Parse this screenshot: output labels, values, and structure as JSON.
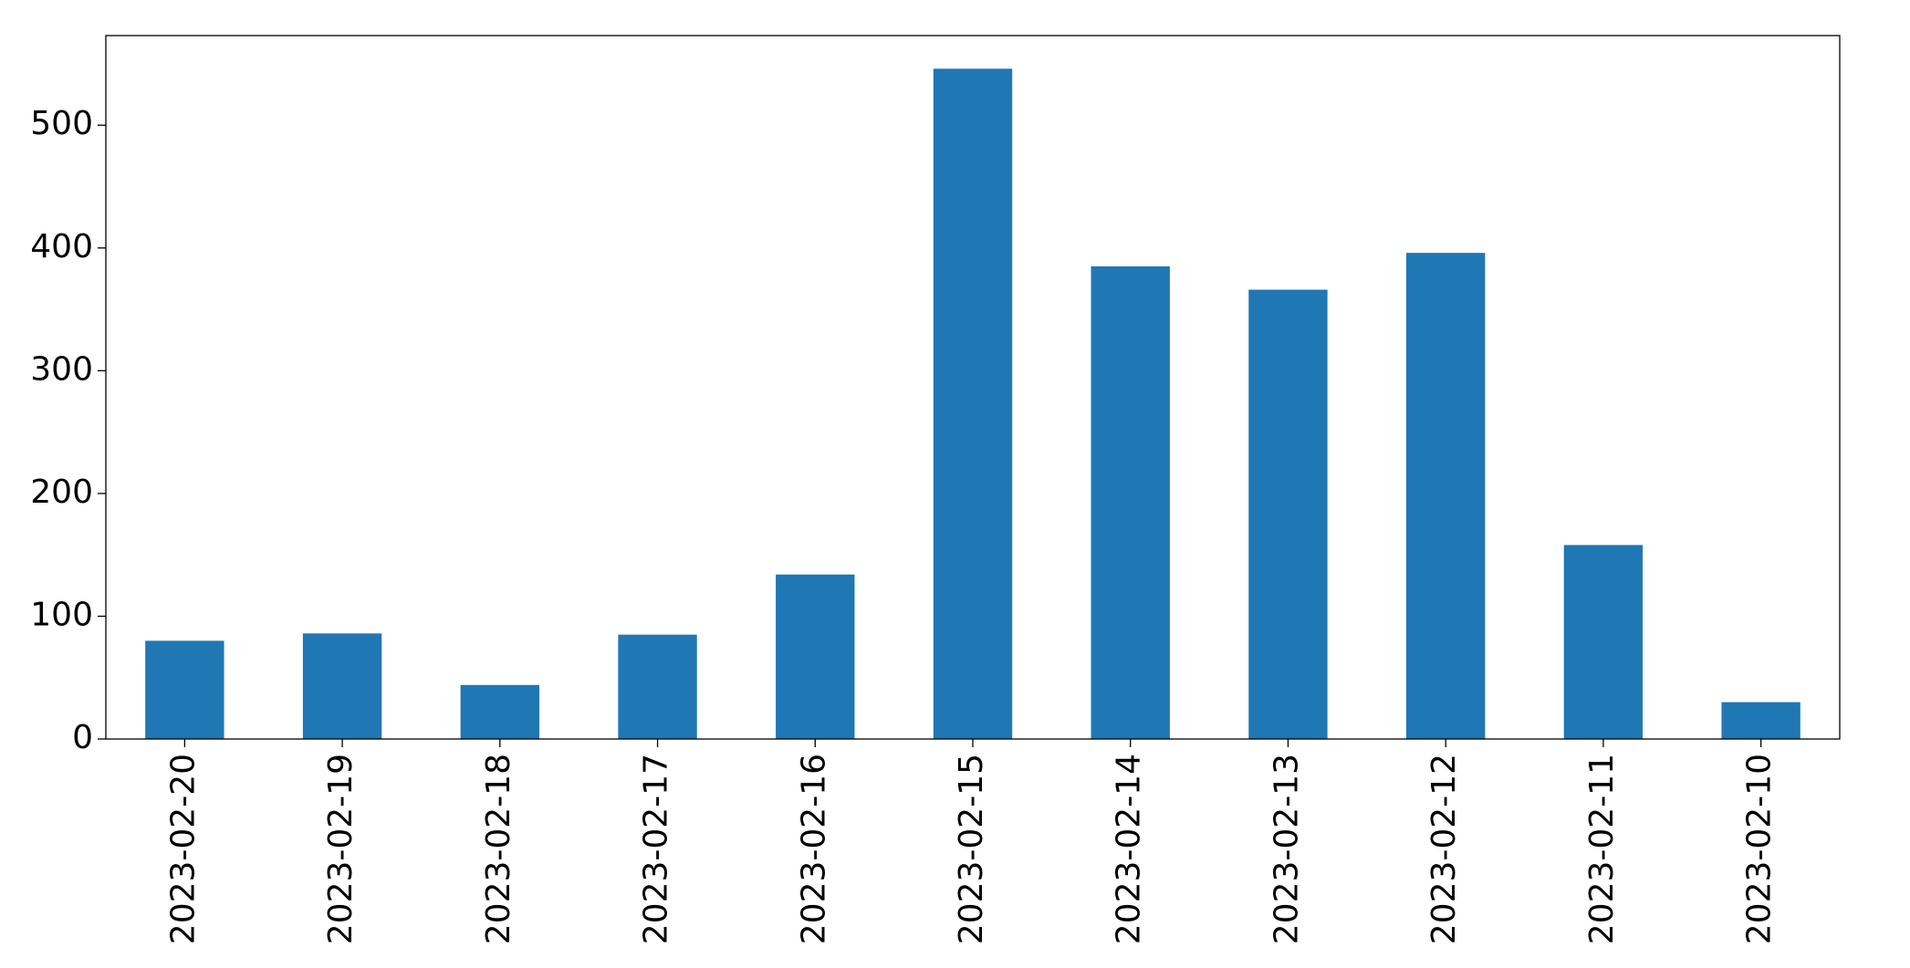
{
  "chart_data": {
    "type": "bar",
    "categories": [
      "2023-02-20",
      "2023-02-19",
      "2023-02-18",
      "2023-02-17",
      "2023-02-16",
      "2023-02-15",
      "2023-02-14",
      "2023-02-13",
      "2023-02-12",
      "2023-02-11",
      "2023-02-10"
    ],
    "values": [
      80,
      86,
      44,
      85,
      134,
      546,
      385,
      366,
      396,
      158,
      30
    ],
    "color": "#1f77b4",
    "ylim": [
      0,
      573
    ],
    "yticks": [
      0,
      100,
      200,
      300,
      400,
      500
    ],
    "grid": false
  }
}
